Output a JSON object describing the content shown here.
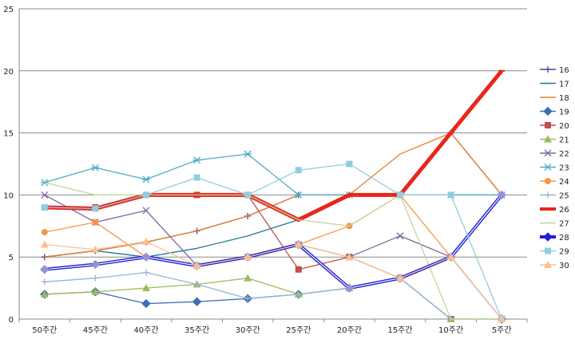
{
  "chart_data": {
    "type": "line",
    "title": "",
    "xlabel": "",
    "ylabel": "",
    "ylim": [
      0,
      25
    ],
    "y_ticks": [
      "0",
      "5",
      "10",
      "15",
      "20",
      "25"
    ],
    "categories": [
      "50주간",
      "45주간",
      "40주간",
      "35주간",
      "30주간",
      "25주간",
      "20주간",
      "15주간",
      "10주간",
      "5주간"
    ],
    "grid": "horizontal",
    "legend_position": "right",
    "series": [
      {
        "name": "16",
        "color": "#5b3a8c",
        "marker": "plus",
        "values": [
          5,
          5.5,
          6.2,
          7.1,
          8.3,
          10,
          10,
          10,
          15,
          10
        ]
      },
      {
        "name": "17",
        "color": "#1f7a96",
        "marker": "none",
        "values": [
          5,
          5.5,
          5,
          5.7,
          6.7,
          8,
          10,
          10,
          10,
          10
        ]
      },
      {
        "name": "18",
        "color": "#e5802a",
        "marker": "none",
        "values": [
          5,
          5.5,
          6.2,
          7.1,
          8.3,
          10,
          10,
          13.3,
          15,
          10
        ]
      },
      {
        "name": "19",
        "color": "#3c6fb4",
        "marker": "diamond",
        "values": [
          2,
          2.2,
          1.25,
          1.4,
          1.65,
          2,
          2.5,
          3.3,
          5,
          0
        ]
      },
      {
        "name": "20",
        "color": "#c0504d",
        "marker": "square",
        "values": [
          9,
          9,
          10,
          10,
          10,
          4,
          5,
          3.3,
          0,
          0
        ]
      },
      {
        "name": "21",
        "color": "#9bbb59",
        "marker": "triangle",
        "values": [
          2,
          2.2,
          2.5,
          2.8,
          3.3,
          2,
          2.5,
          3.3,
          0,
          0
        ]
      },
      {
        "name": "22",
        "color": "#8064a2",
        "marker": "x",
        "values": [
          10,
          7.8,
          8.75,
          4.3,
          5,
          6,
          5,
          6.7,
          5,
          0
        ]
      },
      {
        "name": "23",
        "color": "#4bacc6",
        "marker": "star",
        "values": [
          11,
          12.2,
          11.25,
          12.8,
          13.3,
          10,
          10,
          10,
          10,
          10
        ]
      },
      {
        "name": "24",
        "color": "#f79646",
        "marker": "circle",
        "values": [
          7,
          7.8,
          5,
          4.3,
          5,
          6,
          7.5,
          10,
          5,
          10
        ]
      },
      {
        "name": "25",
        "color": "#95b3d7",
        "marker": "plus",
        "values": [
          3,
          3.3,
          3.75,
          2.8,
          1.65,
          2,
          2.5,
          3.3,
          0,
          0
        ]
      },
      {
        "name": "26",
        "color": "#e8261c",
        "marker": "bar",
        "values": [
          9,
          8.9,
          10,
          10,
          10,
          8,
          10,
          10,
          15,
          20
        ]
      },
      {
        "name": "27",
        "color": "#c3d69b",
        "marker": "none",
        "values": [
          11,
          10,
          10,
          10,
          10,
          8,
          7.5,
          10,
          0,
          0
        ]
      },
      {
        "name": "28",
        "color": "#1f1fd4",
        "marker": "diamond",
        "values": [
          4,
          4.4,
          5,
          4.3,
          5,
          6,
          2.5,
          3.3,
          5,
          10
        ]
      },
      {
        "name": "29",
        "color": "#93cddd",
        "marker": "square",
        "values": [
          9,
          8.9,
          10,
          11.4,
          10,
          12,
          12.5,
          10,
          10,
          0
        ]
      },
      {
        "name": "30",
        "color": "#fac090",
        "marker": "triangle",
        "values": [
          6,
          5.6,
          6.25,
          4.3,
          5,
          6,
          5,
          3.3,
          5,
          0
        ]
      }
    ]
  }
}
